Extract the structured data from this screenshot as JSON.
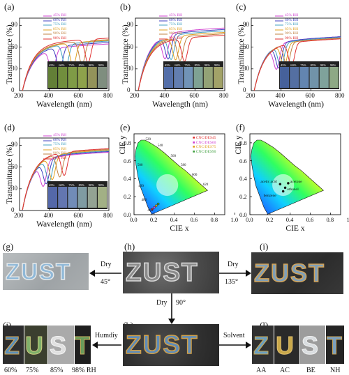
{
  "panels": {
    "a": {
      "label": "(a)"
    },
    "b": {
      "label": "(b)"
    },
    "c": {
      "label": "(c)"
    },
    "d": {
      "label": "(d)"
    },
    "e": {
      "label": "(e)"
    },
    "f": {
      "label": "(f)"
    },
    "g": {
      "label": "(g)"
    },
    "h": {
      "label": "(h)"
    },
    "i": {
      "label": "(i)"
    },
    "j": {
      "label": "(j)"
    },
    "k": {
      "label": "(k)"
    },
    "l": {
      "label": "(l)"
    }
  },
  "axes": {
    "transmittance_label": "Transmittance (%)",
    "wavelength_label": "Wavelength (nm)",
    "cie_x_label": "CIE x",
    "cie_y_label": "CIE y"
  },
  "legend_rh_a": [
    "45% RH",
    "60% RH",
    "75% RH",
    "85% RH",
    "90% RH",
    "98% RH"
  ],
  "legend_rh_d": [
    "45% RH",
    "60% RH",
    "75% RH",
    "85% RH",
    "90% RH",
    "98% RH"
  ],
  "legend_colors": [
    "#d040d0",
    "#4040c0",
    "#40a0c0",
    "#e0a020",
    "#c08040",
    "#e03030"
  ],
  "inset_labels": [
    "45%",
    "60%",
    "75%",
    "85%",
    "90%",
    "98%"
  ],
  "cie_e_legend": [
    "CNC/DES45",
    "CNC/DES60",
    "CNC/DES75",
    "CNC/DES90"
  ],
  "cie_f_labels": [
    "acetic acid",
    "acetone",
    "ethanol",
    "benzene"
  ],
  "arrows": {
    "dry_45": "Dry",
    "dry_45_angle": "45°",
    "dry_135": "Dry",
    "dry_135_angle": "135°",
    "dry_90": "Dry",
    "dry_90_angle": "90°",
    "humidity": "Humdiy",
    "solvent": "Solvent"
  },
  "photo_text": "ZUST",
  "humidity_captions": [
    "60%",
    "75%",
    "85%",
    "98% RH"
  ],
  "solvent_captions": [
    "AA",
    "AC",
    "BE",
    "NH"
  ],
  "chart_data": [
    {
      "type": "line",
      "panel": "a",
      "xlabel": "Wavelength (nm)",
      "ylabel": "Transmittance (%)",
      "xlim": [
        200,
        800
      ],
      "ylim": [
        0,
        100
      ],
      "xticks": [
        200,
        400,
        600,
        800
      ],
      "yticks": [
        0,
        30,
        60,
        90
      ],
      "series": [
        {
          "name": "45% RH",
          "color": "#d040d0",
          "dip": 420,
          "base": 62
        },
        {
          "name": "60% RH",
          "color": "#4040c0",
          "dip": 470,
          "base": 64
        },
        {
          "name": "75% RH",
          "color": "#40a0c0",
          "dip": 510,
          "base": 66
        },
        {
          "name": "85% RH",
          "color": "#e0a020",
          "dip": 560,
          "base": 67
        },
        {
          "name": "90% RH",
          "color": "#c08040",
          "dip": 620,
          "base": 68
        },
        {
          "name": "98% RH",
          "color": "#e03030",
          "dip": 660,
          "base": 70
        }
      ]
    },
    {
      "type": "line",
      "panel": "b",
      "xlabel": "Wavelength (nm)",
      "ylabel": "Transmittance (%)",
      "xlim": [
        200,
        800
      ],
      "ylim": [
        0,
        100
      ],
      "xticks": [
        200,
        400,
        600,
        800
      ],
      "yticks": [
        0,
        30,
        60,
        90
      ],
      "series": [
        {
          "name": "45% RH",
          "color": "#d040d0",
          "dip": 400,
          "base": 84
        },
        {
          "name": "60% RH",
          "color": "#4040c0",
          "dip": 420,
          "base": 82
        },
        {
          "name": "75% RH",
          "color": "#40a0c0",
          "dip": 440,
          "base": 80
        },
        {
          "name": "85% RH",
          "color": "#e0a020",
          "dip": 470,
          "base": 78
        },
        {
          "name": "90% RH",
          "color": "#c08040",
          "dip": 500,
          "base": 76
        },
        {
          "name": "98% RH",
          "color": "#e03030",
          "dip": 530,
          "base": 74
        }
      ]
    },
    {
      "type": "line",
      "panel": "c",
      "xlabel": "Wavelength (nm)",
      "ylabel": "Transmittance (%)",
      "xlim": [
        200,
        800
      ],
      "ylim": [
        0,
        100
      ],
      "xticks": [
        200,
        400,
        600,
        800
      ],
      "yticks": [
        0,
        30,
        60,
        90
      ],
      "series": [
        {
          "name": "45% RH",
          "color": "#d040d0",
          "dip": 370,
          "base": 72
        },
        {
          "name": "60% RH",
          "color": "#4040c0",
          "dip": 385,
          "base": 72
        },
        {
          "name": "75% RH",
          "color": "#40a0c0",
          "dip": 400,
          "base": 71
        },
        {
          "name": "85% RH",
          "color": "#e0a020",
          "dip": 420,
          "base": 70
        },
        {
          "name": "90% RH",
          "color": "#c08040",
          "dip": 440,
          "base": 70
        },
        {
          "name": "98% RH",
          "color": "#e03030",
          "dip": 470,
          "base": 69
        }
      ]
    },
    {
      "type": "line",
      "panel": "d",
      "xlabel": "Wavelength (nm)",
      "ylabel": "Transmittance (%)",
      "xlim": [
        200,
        800
      ],
      "ylim": [
        0,
        100
      ],
      "xticks": [
        200,
        400,
        600,
        800
      ],
      "yticks": [
        0,
        30,
        60,
        90
      ],
      "series": [
        {
          "name": "45% RH",
          "color": "#d040d0",
          "dip": 360,
          "base": 78
        },
        {
          "name": "60% RH",
          "color": "#4040c0",
          "dip": 380,
          "base": 79
        },
        {
          "name": "75% RH",
          "color": "#40a0c0",
          "dip": 400,
          "base": 80
        },
        {
          "name": "85% RH",
          "color": "#e0a020",
          "dip": 420,
          "base": 81
        },
        {
          "name": "90% RH",
          "color": "#c08040",
          "dip": 470,
          "base": 82
        },
        {
          "name": "98% RH",
          "color": "#e03030",
          "dip": 500,
          "base": 83
        }
      ]
    },
    {
      "type": "scatter",
      "panel": "e",
      "xlabel": "CIE x",
      "ylabel": "CIE y",
      "xlim": [
        0,
        1.0
      ],
      "ylim": [
        0,
        1.0
      ],
      "xticks": [
        0,
        0.2,
        0.4,
        0.6,
        0.8,
        1.0
      ],
      "yticks": [
        0,
        0.2,
        0.4,
        0.6,
        0.8
      ],
      "points": [
        {
          "name": "CNC/DES45",
          "x": 0.18,
          "y": 0.06,
          "color": "#e03030"
        },
        {
          "name": "CNC/DES60",
          "x": 0.2,
          "y": 0.08,
          "color": "#d040d0"
        },
        {
          "name": "CNC/DES75",
          "x": 0.22,
          "y": 0.1,
          "color": "#e0a020"
        },
        {
          "name": "CNC/DES90",
          "x": 0.24,
          "y": 0.12,
          "color": "#40a040"
        }
      ],
      "wavelength_ticks": [
        "520",
        "540",
        "560",
        "580",
        "600",
        "620",
        "500",
        "490",
        "480",
        "460"
      ]
    },
    {
      "type": "scatter",
      "panel": "f",
      "xlabel": "CIE x",
      "ylabel": "CIE y",
      "xlim": [
        0,
        1.0
      ],
      "ylim": [
        0,
        1.0
      ],
      "xticks": [
        0,
        0.2,
        0.4,
        0.6,
        0.8,
        1.0
      ],
      "yticks": [
        0,
        0.2,
        0.4,
        0.6,
        0.8
      ],
      "points": [
        {
          "name": "acetic acid",
          "x": 0.3,
          "y": 0.34
        },
        {
          "name": "acetone",
          "x": 0.38,
          "y": 0.35
        },
        {
          "name": "ethanol",
          "x": 0.35,
          "y": 0.3
        },
        {
          "name": "benzene",
          "x": 0.33,
          "y": 0.26
        }
      ]
    }
  ]
}
